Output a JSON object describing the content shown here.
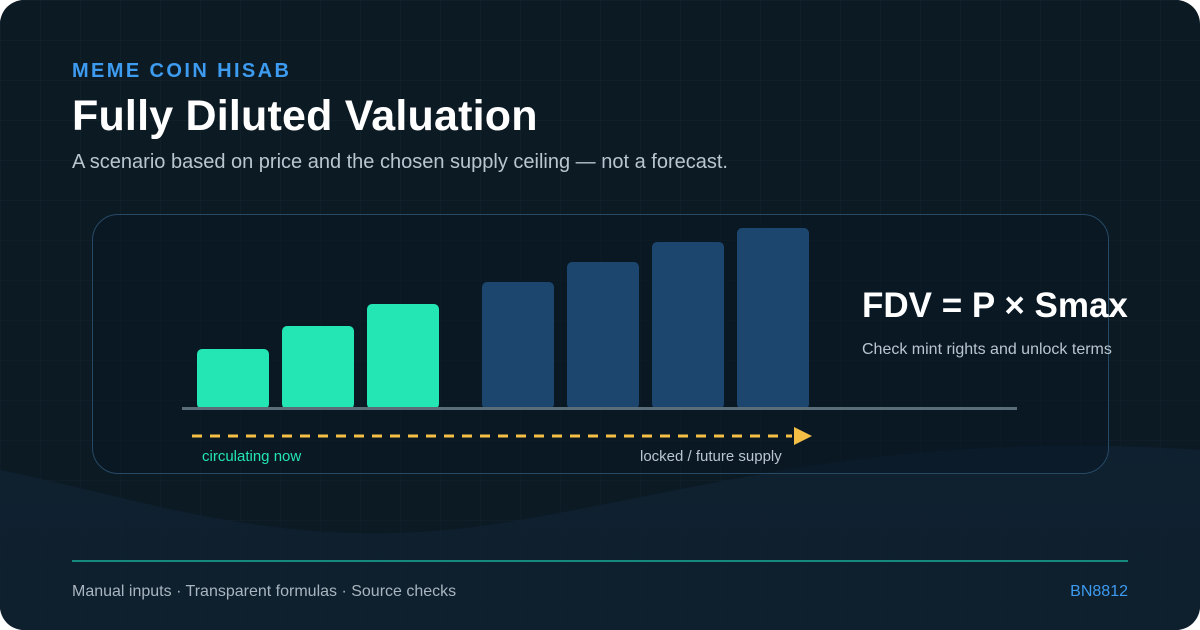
{
  "header": {
    "eyebrow": "MEME COIN HISAB",
    "title": "Fully Diluted Valuation",
    "subtitle": "A scenario based on price and the chosen supply ceiling — not a forecast."
  },
  "illustration": {
    "circulating_label": "circulating now",
    "locked_label": "locked / future supply",
    "circulating_color": "#24e5b4",
    "locked_color": "#1d466e",
    "arrow_color": "#f5bf45"
  },
  "formula": {
    "text": "FDV = P × Smax",
    "note": "Check mint rights and unlock terms"
  },
  "footer": {
    "left": "Manual inputs · Transparent formulas · Source checks",
    "right": "BN8812"
  }
}
